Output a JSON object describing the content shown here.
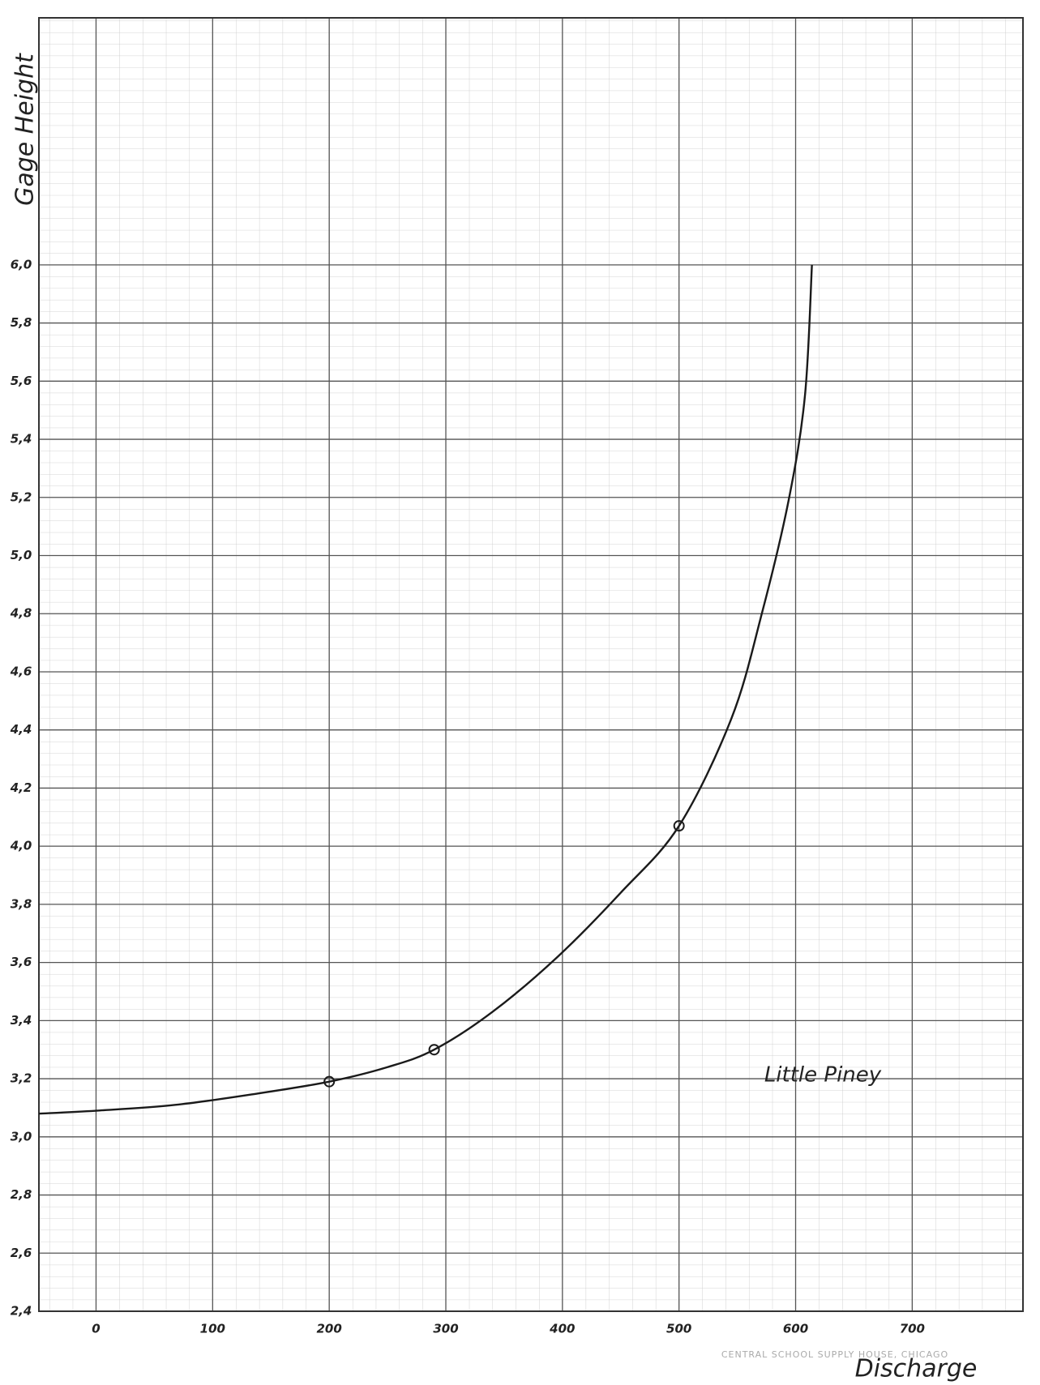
{
  "chart_data": {
    "type": "line",
    "ylabel": "Gage Height",
    "xlabel": "Discharge",
    "annotation": "Little Piney",
    "footer": "CENTRAL SCHOOL SUPPLY HOUSE, CHICAGO",
    "xlim": [
      -49,
      795
    ],
    "ylim": [
      2.4,
      6.85
    ],
    "xticks": [
      0,
      100,
      200,
      300,
      400,
      500,
      600,
      700
    ],
    "yticks": [
      {
        "value": 2.4,
        "label": "2,4"
      },
      {
        "value": 2.6,
        "label": "2,6"
      },
      {
        "value": 2.8,
        "label": "2,8"
      },
      {
        "value": 3.0,
        "label": "3,0"
      },
      {
        "value": 3.2,
        "label": "3,2"
      },
      {
        "value": 3.4,
        "label": "3,4"
      },
      {
        "value": 3.6,
        "label": "3,6"
      },
      {
        "value": 3.8,
        "label": "3,8"
      },
      {
        "value": 4.0,
        "label": "4,0"
      },
      {
        "value": 4.2,
        "label": "4,2"
      },
      {
        "value": 4.4,
        "label": "4,4"
      },
      {
        "value": 4.6,
        "label": "4,6"
      },
      {
        "value": 4.8,
        "label": "4,8"
      },
      {
        "value": 5.0,
        "label": "5,0"
      },
      {
        "value": 5.2,
        "label": "5,2"
      },
      {
        "value": 5.4,
        "label": "5,4"
      },
      {
        "value": 5.6,
        "label": "5,6"
      },
      {
        "value": 5.8,
        "label": "5,8"
      },
      {
        "value": 6.0,
        "label": "6,0"
      }
    ],
    "grid": true,
    "series": [
      {
        "color": "#1a1a1a",
        "style": "line",
        "x": [
          -49,
          0,
          68,
          140,
          200,
          250,
          290,
          340,
          396,
          450,
          500,
          545,
          571,
          594,
          608,
          614
        ],
        "values": [
          3.08,
          3.09,
          3.11,
          3.15,
          3.19,
          3.24,
          3.3,
          3.43,
          3.62,
          3.84,
          4.07,
          4.44,
          4.8,
          5.19,
          5.55,
          6.0
        ]
      },
      {
        "color": "#1a1a1a",
        "style": "markers",
        "x": [
          200,
          290,
          500
        ],
        "values": [
          3.19,
          3.3,
          4.07
        ]
      }
    ]
  }
}
